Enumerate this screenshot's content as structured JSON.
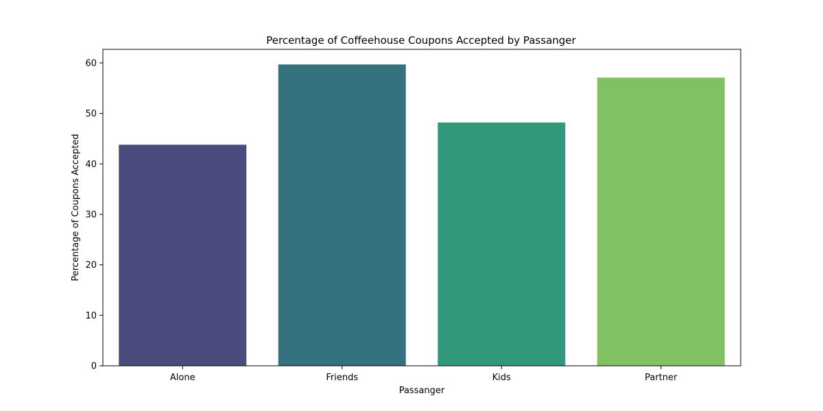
{
  "chart_data": {
    "type": "bar",
    "title": "Percentage of Coffeehouse Coupons Accepted by Passanger",
    "xlabel": "Passanger",
    "ylabel": "Percentage of Coupons Accepted",
    "categories": [
      "Alone",
      "Friends",
      "Kids",
      "Partner"
    ],
    "values": [
      43.8,
      59.7,
      48.2,
      57.1
    ],
    "colors": [
      "#4a4c7e",
      "#36717f",
      "#33987b",
      "#80c261"
    ],
    "ylim": [
      0,
      62.7
    ],
    "yticks": [
      0,
      10,
      20,
      30,
      40,
      50,
      60
    ],
    "grid": false,
    "legend": "none"
  }
}
